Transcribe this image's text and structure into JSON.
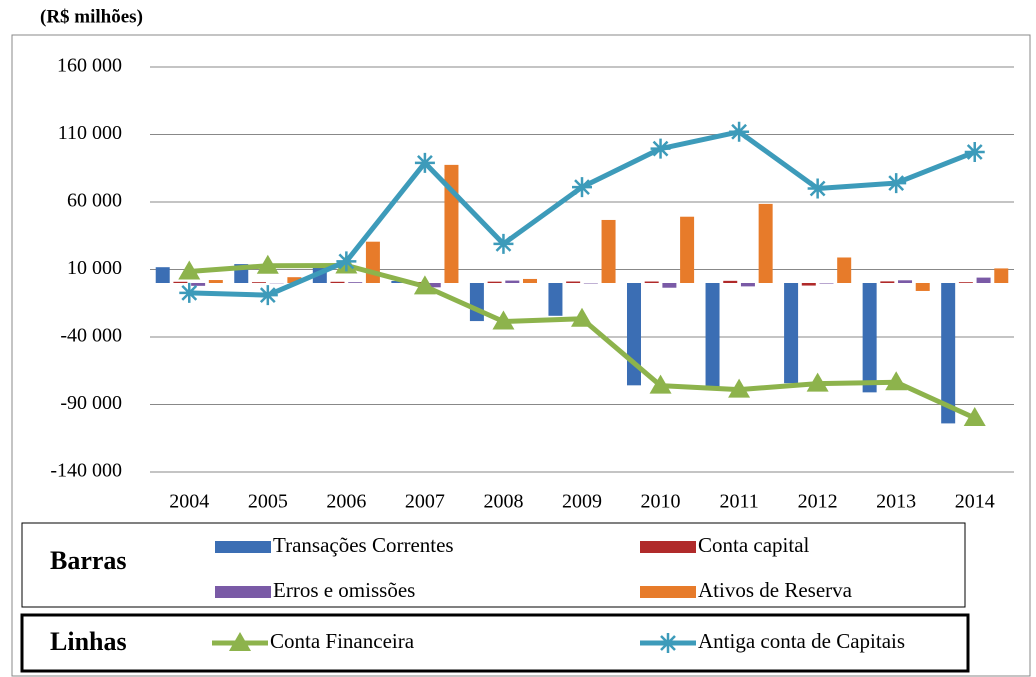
{
  "chart_data": {
    "type": "bar",
    "title": "(R$ milhões)",
    "categories": [
      "2004",
      "2005",
      "2006",
      "2007",
      "2008",
      "2009",
      "2010",
      "2011",
      "2012",
      "2013",
      "2014"
    ],
    "ylim": [
      -140000,
      160000
    ],
    "yticks": [
      {
        "value": -140000,
        "label": "-140 000"
      },
      {
        "value": -90000,
        "label": "-90 000"
      },
      {
        "value": -40000,
        "label": "-40 000"
      },
      {
        "value": 10000,
        "label": "10 000"
      },
      {
        "value": 60000,
        "label": "60 000"
      },
      {
        "value": 110000,
        "label": "110 000"
      },
      {
        "value": 160000,
        "label": "160 000"
      }
    ],
    "grid": true,
    "legend_titles": [
      "Barras",
      "Linhas"
    ],
    "series": [
      {
        "name": "Transações Correntes",
        "type": "bar",
        "color": "#3b6eb4",
        "values": [
          11700,
          14000,
          13600,
          1500,
          -28200,
          -24300,
          -75800,
          -77000,
          -74200,
          -81000,
          -104000
        ]
      },
      {
        "name": "Conta capital",
        "type": "bar",
        "color": "#b02a2a",
        "values": [
          900,
          600,
          900,
          750,
          1000,
          1100,
          1100,
          1600,
          -1900,
          1200,
          600
        ]
      },
      {
        "name": "Erros e omissões",
        "type": "bar",
        "color": "#7a5aa6",
        "values": [
          -2100,
          -200,
          600,
          -3200,
          1800,
          -350,
          -3500,
          -2500,
          -400,
          2000,
          4000
        ]
      },
      {
        "name": "Ativos de Reserva",
        "type": "bar",
        "color": "#e77b2a",
        "values": [
          2200,
          4300,
          30600,
          87500,
          3000,
          46700,
          49100,
          58600,
          18900,
          -5900,
          10800
        ]
      },
      {
        "name": "Conta Financeira",
        "type": "line",
        "marker": "triangle",
        "color": "#8db34c",
        "values": [
          8500,
          12800,
          13000,
          -2500,
          -28500,
          -26500,
          -76000,
          -79000,
          -74500,
          -73500,
          -100000
        ]
      },
      {
        "name": "Antiga conta de Capitais",
        "type": "line",
        "marker": "star",
        "color": "#3d9bba",
        "values": [
          -7300,
          -9000,
          16000,
          89000,
          29000,
          71000,
          99500,
          112000,
          70000,
          74000,
          97000
        ]
      }
    ]
  }
}
